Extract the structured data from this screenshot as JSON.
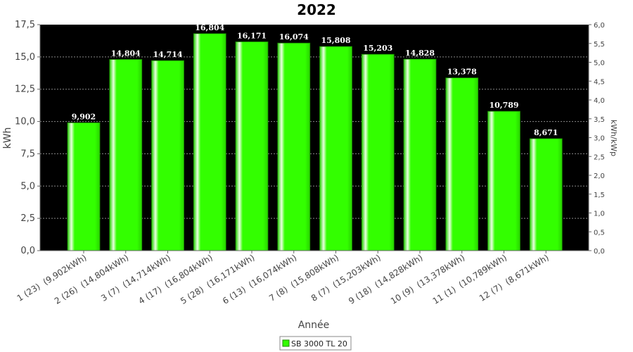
{
  "chart_data": {
    "type": "bar",
    "title": "2022",
    "xlabel": "Année",
    "ylabel": "kWh",
    "y2label": "kWh/kWp",
    "ylim": [
      0,
      17.5
    ],
    "y2lim": [
      0,
      6.0
    ],
    "yticks": [
      "0,0",
      "2,5",
      "5,0",
      "7,5",
      "10,0",
      "12,5",
      "15,0",
      "17,5"
    ],
    "y2ticks": [
      "0,0",
      "0,5",
      "1,0",
      "1,5",
      "2,0",
      "2,5",
      "3,0",
      "3,5",
      "4,0",
      "4,5",
      "5,0",
      "5,5",
      "6,0"
    ],
    "grid": true,
    "legend_position": "bottom",
    "categories": [
      "1 (23)  (9,902kWh)",
      "2 (26)  (14,804kWh)",
      "3 (7)  (14,714kWh)",
      "4 (17)  (16,804kWh)",
      "5 (28)  (16,171kWh)",
      "6 (13)  (16,074kWh)",
      "7 (8)  (15,808kWh)",
      "8 (7)  (15,203kWh)",
      "9 (18)  (14,828kWh)",
      "10 (9)  (13,378kWh)",
      "11 (1)  (10,789kWh)",
      "12 (7)  (8,671kWh)"
    ],
    "series": [
      {
        "name": "SB 3000 TL 20",
        "color": "#33ff00",
        "values": [
          9.902,
          14.804,
          14.714,
          16.804,
          16.171,
          16.074,
          15.808,
          15.203,
          14.828,
          13.378,
          10.789,
          8.671
        ],
        "labels": [
          "9,902",
          "14,804",
          "14,714",
          "16,804",
          "16,171",
          "16,074",
          "15,808",
          "15,203",
          "14,828",
          "13,378",
          "10,789",
          "8,671"
        ]
      }
    ],
    "colors": {
      "plot_background": "#000000",
      "grid": "#888888",
      "bar": "#33ff00"
    }
  }
}
